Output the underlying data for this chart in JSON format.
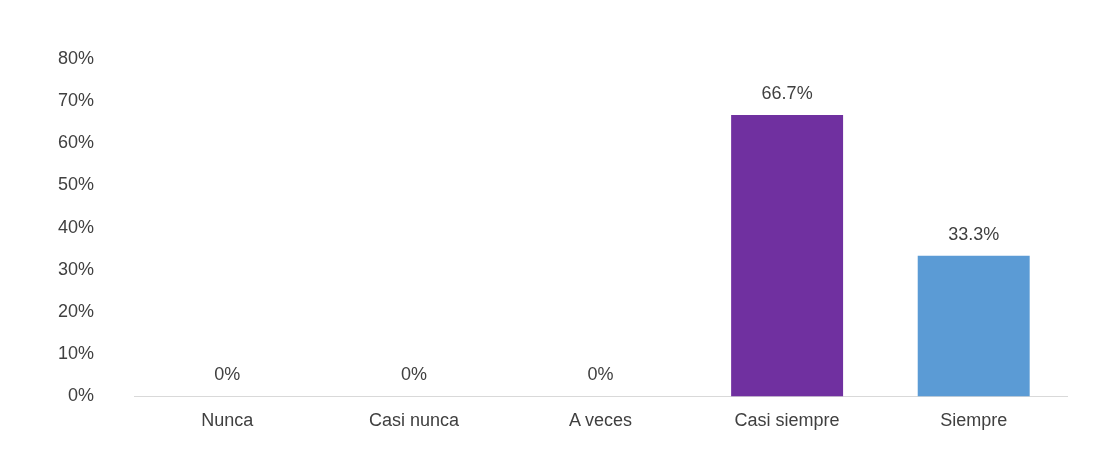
{
  "chart_data": {
    "type": "bar",
    "categories": [
      "Nunca",
      "Casi nunca",
      "A veces",
      "Casi siempre",
      "Siempre"
    ],
    "values": [
      0,
      0,
      0,
      66.7,
      33.3
    ],
    "colors": [
      "#7030a0",
      "#7030a0",
      "#7030a0",
      "#7030a0",
      "#5b9bd5"
    ],
    "value_labels": [
      "0%",
      "0%",
      "0%",
      "66.7%",
      "33.3%"
    ],
    "ylim": [
      0,
      80
    ],
    "yticks": [
      {
        "value": 0,
        "label": "0%"
      },
      {
        "value": 10,
        "label": "10%"
      },
      {
        "value": 20,
        "label": "20%"
      },
      {
        "value": 30,
        "label": "30%"
      },
      {
        "value": 40,
        "label": "40%"
      },
      {
        "value": 50,
        "label": "50%"
      },
      {
        "value": 60,
        "label": "60%"
      },
      {
        "value": 70,
        "label": "70%"
      },
      {
        "value": 80,
        "label": "80%"
      }
    ],
    "grid": false,
    "legend": false
  }
}
